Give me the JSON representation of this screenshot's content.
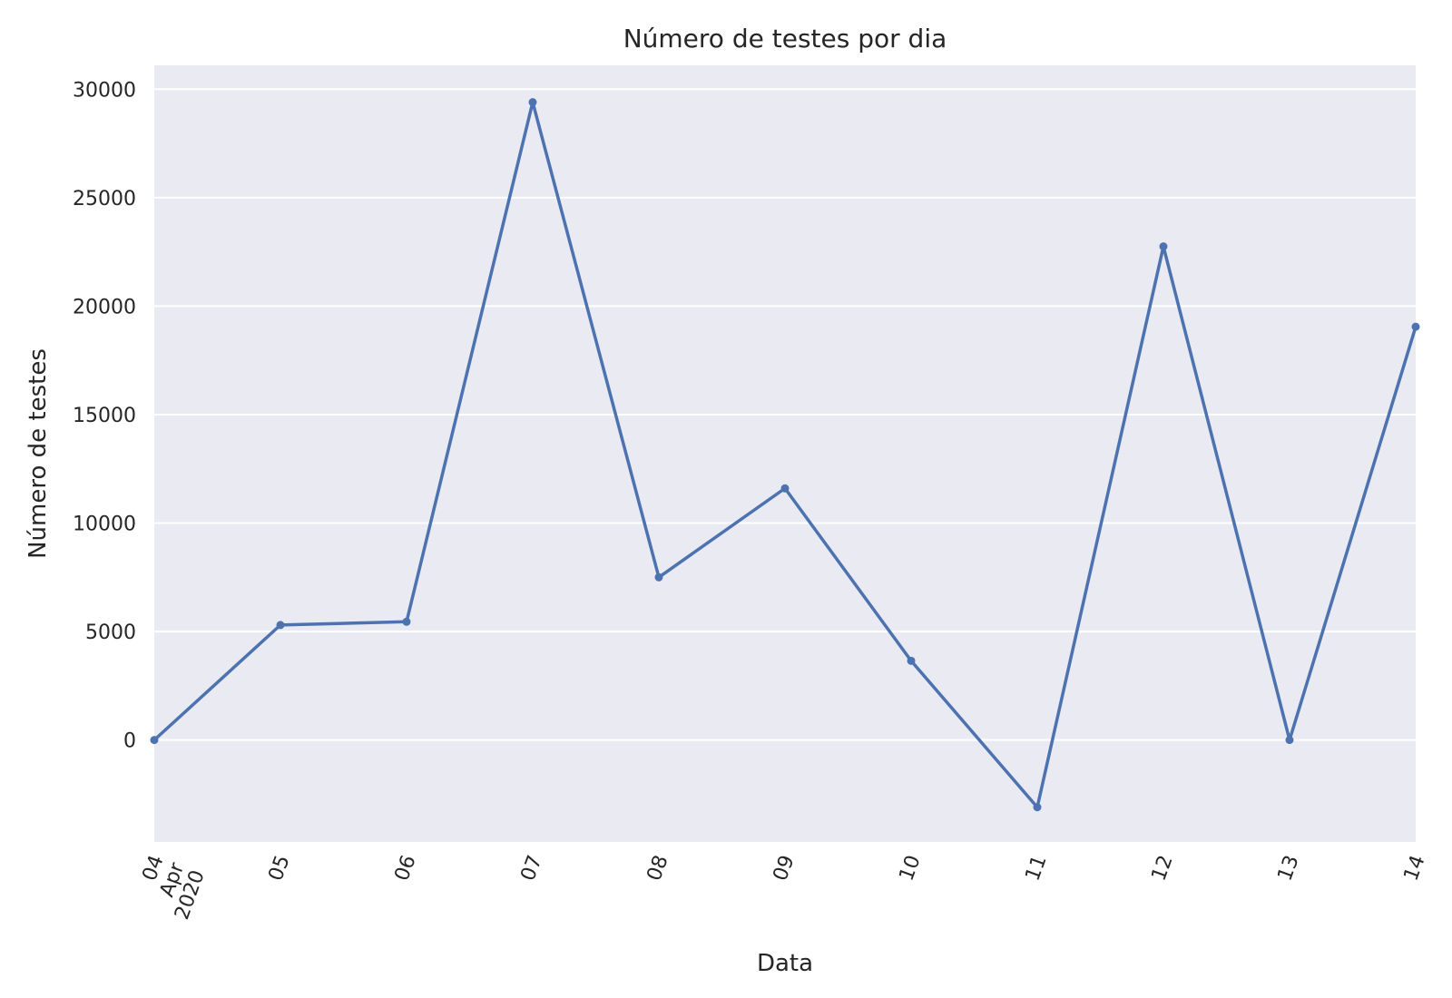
{
  "chart_data": {
    "type": "line",
    "title": "Número de testes por dia",
    "xlabel": "Data",
    "ylabel": "Número de testes",
    "x": [
      "2020-04-04",
      "2020-04-05",
      "2020-04-06",
      "2020-04-07",
      "2020-04-08",
      "2020-04-09",
      "2020-04-10",
      "2020-04-11",
      "2020-04-12",
      "2020-04-13",
      "2020-04-14"
    ],
    "x_tick_labels": [
      [
        "04",
        "Apr",
        "2020"
      ],
      [
        "05"
      ],
      [
        "06"
      ],
      [
        "07"
      ],
      [
        "08"
      ],
      [
        "09"
      ],
      [
        "10"
      ],
      [
        "11"
      ],
      [
        "12"
      ],
      [
        "13"
      ],
      [
        "14"
      ]
    ],
    "series": [
      {
        "values": [
          0,
          5300,
          5450,
          29400,
          7500,
          11600,
          3650,
          -3100,
          22750,
          0,
          19050
        ]
      }
    ],
    "ylim": [
      -4700,
      31100
    ],
    "yticks": [
      0,
      5000,
      10000,
      15000,
      20000,
      25000,
      30000
    ],
    "grid": true,
    "legend": "none",
    "colors": {
      "line": "#4c72b0",
      "plot_background": "#eaeaf2",
      "grid": "#ffffff"
    }
  }
}
